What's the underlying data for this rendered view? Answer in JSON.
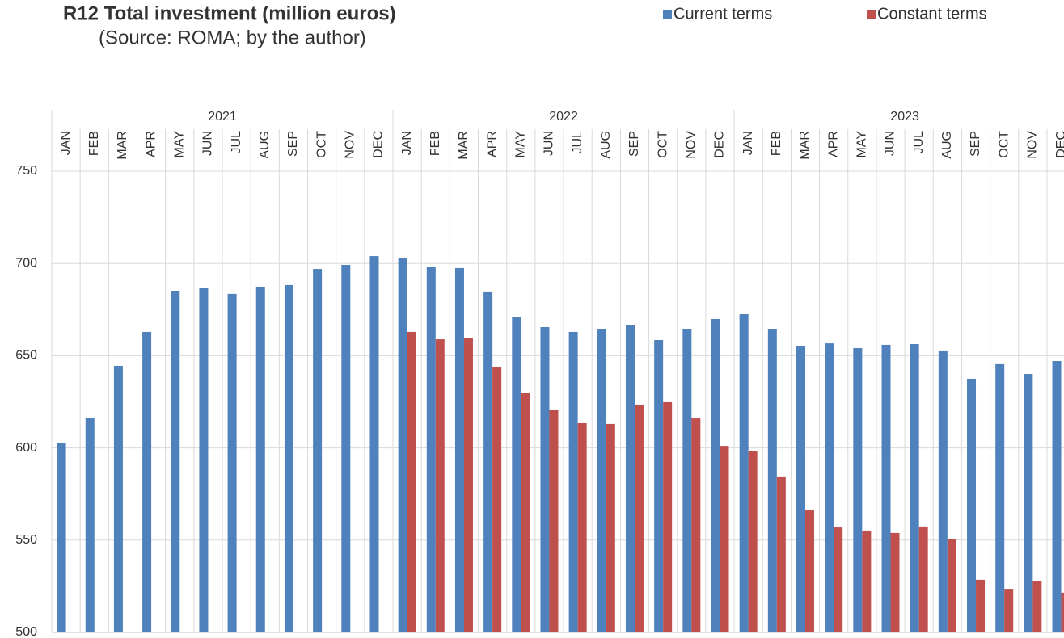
{
  "chart_data": {
    "type": "bar",
    "title": "R12 Total investment (million euros)",
    "subtitle": "(Source: ROMA; by the author)",
    "years": [
      "2021",
      "2022",
      "2023"
    ],
    "categories": [
      "JAN",
      "FEB",
      "MAR",
      "APR",
      "MAY",
      "JUN",
      "JUL",
      "AUG",
      "SEP",
      "OCT",
      "NOV",
      "DEC",
      "JAN",
      "FEB",
      "MAR",
      "APR",
      "MAY",
      "JUN",
      "JUL",
      "AUG",
      "SEP",
      "OCT",
      "NOV",
      "DEC",
      "JAN",
      "FEB",
      "MAR",
      "APR",
      "MAY",
      "JUN",
      "JUL",
      "AUG",
      "SEP",
      "OCT",
      "NOV",
      "DEC"
    ],
    "series": [
      {
        "name": "Current terms",
        "color": "#4f81bd",
        "values": [
          602.5,
          616.1,
          644.5,
          662.9,
          685.2,
          686.5,
          683.5,
          687.4,
          688.3,
          697,
          699.2,
          704,
          702.7,
          697.9,
          697.5,
          684.8,
          670.8,
          665.5,
          662.9,
          664.6,
          666.4,
          658.5,
          664.2,
          669.9,
          672.5,
          664.2,
          655.4,
          656.7,
          654.1,
          655.9,
          656.3,
          652.4,
          637.5,
          645.4,
          640.1,
          647.1
        ]
      },
      {
        "name": "Constant terms",
        "color": "#c0504d",
        "values": [
          null,
          null,
          null,
          null,
          null,
          null,
          null,
          null,
          null,
          null,
          null,
          null,
          662.9,
          658.9,
          659.4,
          643.6,
          629.6,
          620.4,
          613.4,
          613,
          623.5,
          624.8,
          616,
          601.1,
          598.5,
          584.1,
          566.1,
          556.9,
          555.2,
          553.9,
          557.4,
          550.4,
          528.5,
          523.6,
          528,
          521.5
        ]
      }
    ],
    "ylim": [
      500,
      750
    ],
    "yticks": [
      500,
      550,
      600,
      650,
      700,
      750
    ],
    "grid": true,
    "legend": "top"
  }
}
